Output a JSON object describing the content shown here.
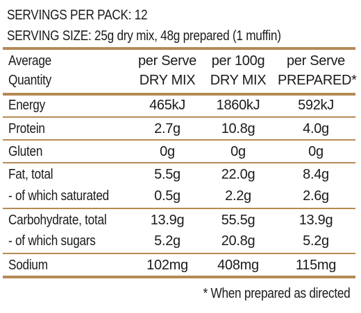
{
  "header": {
    "servings_per_pack": "SERVINGS PER PACK: 12",
    "serving_size": "SERVING SIZE: 25g dry mix, 48g prepared (1 muffin)"
  },
  "table": {
    "columns": {
      "label": [
        "Average",
        "Quantity"
      ],
      "col1": [
        "per Serve",
        "DRY MIX"
      ],
      "col2": [
        "per 100g",
        "DRY MIX"
      ],
      "col3": [
        "per Serve",
        "PREPARED*"
      ]
    },
    "rows": [
      {
        "label": "Energy",
        "col1": "465kJ",
        "col2": "1860kJ",
        "col3": "592kJ"
      },
      {
        "label": "Protein",
        "col1": "2.7g",
        "col2": "10.8g",
        "col3": "4.0g"
      },
      {
        "label": "Gluten",
        "col1": "0g",
        "col2": "0g",
        "col3": "0g"
      },
      {
        "label": "Fat, total",
        "col1": "5.5g",
        "col2": "22.0g",
        "col3": "8.4g"
      },
      {
        "label": "- of which saturated",
        "col1": "0.5g",
        "col2": "2.2g",
        "col3": "2.6g"
      },
      {
        "label": "Carbohydrate, total",
        "col1": "13.9g",
        "col2": "55.5g",
        "col3": "13.9g"
      },
      {
        "label": "- of which sugars",
        "col1": "5.2g",
        "col2": "20.8g",
        "col3": "5.2g"
      },
      {
        "label": "Sodium",
        "col1": "102mg",
        "col2": "408mg",
        "col3": "115mg"
      }
    ]
  },
  "footnote": "* When prepared as directed",
  "colors": {
    "rule": "#b58a55",
    "text": "#1a1a1a"
  }
}
